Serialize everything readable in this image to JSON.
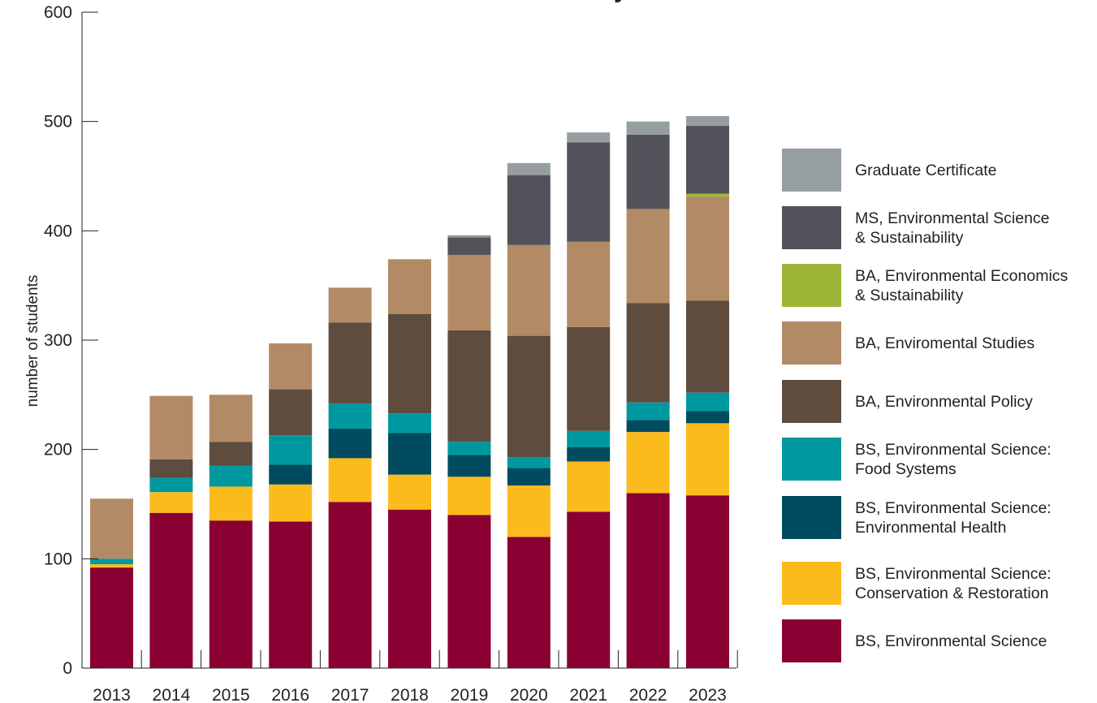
{
  "chart_data": {
    "type": "bar",
    "stacked": true,
    "title": "y",
    "ylabel": "number of students",
    "xlabel": "",
    "ylim": [
      0,
      600
    ],
    "yticks": [
      0,
      100,
      200,
      300,
      400,
      500,
      600
    ],
    "categories": [
      "2013",
      "2014",
      "2015",
      "2016",
      "2017",
      "2018",
      "2019",
      "2020",
      "2021",
      "2022",
      "2023"
    ],
    "series": [
      {
        "name": "BS, Environmental Science",
        "color": "#8b0033",
        "values": [
          92,
          142,
          135,
          134,
          152,
          145,
          140,
          120,
          143,
          160,
          158
        ]
      },
      {
        "name": "BS, Environmental Science:\nConservation & Restoration",
        "color": "#fcbb1c",
        "values": [
          3,
          19,
          31,
          34,
          40,
          32,
          35,
          47,
          46,
          56,
          66
        ]
      },
      {
        "name": "BS, Environmental Science:\nEnvironmental Health",
        "color": "#004b5e",
        "values": [
          0,
          0,
          0,
          18,
          27,
          38,
          20,
          16,
          13,
          11,
          11
        ]
      },
      {
        "name": "BS, Environmental Science:\nFood Systems",
        "color": "#00989f",
        "values": [
          5,
          13,
          19,
          27,
          23,
          18,
          12,
          10,
          15,
          16,
          17
        ]
      },
      {
        "name": "BA, Environmental Policy",
        "color": "#5e4c3f",
        "values": [
          0,
          17,
          22,
          42,
          74,
          91,
          102,
          111,
          95,
          91,
          84
        ]
      },
      {
        "name": "BA, Enviromental Studies",
        "color": "#b38a66",
        "values": [
          55,
          58,
          43,
          42,
          32,
          50,
          69,
          83,
          78,
          86,
          95
        ]
      },
      {
        "name": "BA, Environmental Economics\n& Sustainability",
        "color": "#9cb537",
        "values": [
          0,
          0,
          0,
          0,
          0,
          0,
          0,
          0,
          0,
          0,
          3
        ]
      },
      {
        "name": "MS, Environmental Science\n& Sustainability",
        "color": "#52525b",
        "values": [
          0,
          0,
          0,
          0,
          0,
          0,
          16,
          64,
          91,
          68,
          62
        ]
      },
      {
        "name": "Graduate Certificate",
        "color": "#969ea1",
        "values": [
          0,
          0,
          0,
          0,
          0,
          0,
          2,
          11,
          9,
          12,
          9
        ]
      }
    ],
    "legend_position": "right",
    "grid": false
  }
}
